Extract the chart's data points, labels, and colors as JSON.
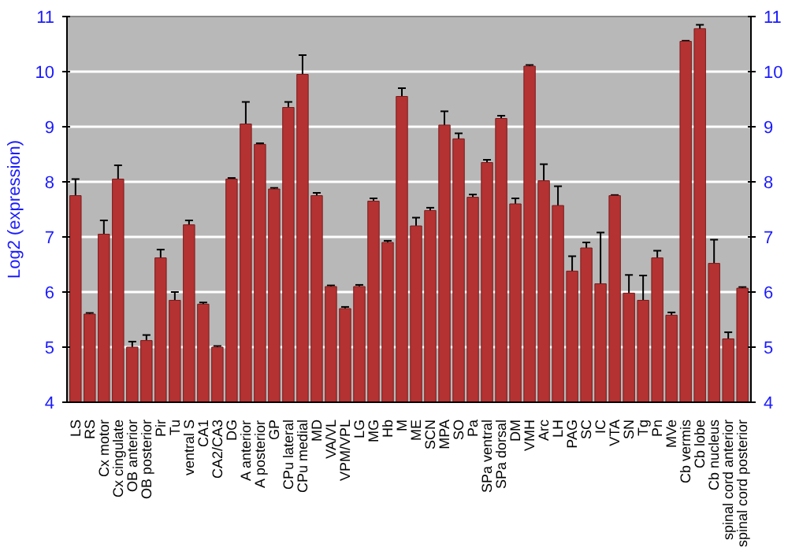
{
  "chart_data": {
    "type": "bar",
    "ylabel": "Log2 (expression)",
    "categories": [
      "LS",
      "RS",
      "Cx motor",
      "Cx cingulate",
      "OB anterior",
      "OB posterior",
      "Pir",
      "Tu",
      "ventral S",
      "CA1",
      "CA2/CA3",
      "DG",
      "A anterior",
      "A posterior",
      "GP",
      "CPu lateral",
      "CPu medial",
      "MD",
      "VA/VL",
      "VPM/VPL",
      "LG",
      "MG",
      "Hb",
      "M",
      "ME",
      "SCN",
      "MPA",
      "SO",
      "Pa",
      "SPa ventral",
      "SPa dorsal",
      "DM",
      "VMH",
      "Arc",
      "LH",
      "PAG",
      "SC",
      "IC",
      "VTA",
      "SN",
      "Tg",
      "Pn",
      "MVe",
      "Cb vermis",
      "Cb lobe",
      "Cb nucleus",
      "spinal cord anterior",
      "spinal cord posterior"
    ],
    "values": [
      7.75,
      5.6,
      7.05,
      8.05,
      5.0,
      5.12,
      6.62,
      5.85,
      7.22,
      5.78,
      5.0,
      8.05,
      9.05,
      8.68,
      7.87,
      9.35,
      9.95,
      7.75,
      6.1,
      5.7,
      6.1,
      7.65,
      6.9,
      9.55,
      7.2,
      7.48,
      9.03,
      8.78,
      7.72,
      8.35,
      9.15,
      7.6,
      10.1,
      8.02,
      7.57,
      6.38,
      6.8,
      6.15,
      7.75,
      5.98,
      5.85,
      6.62,
      5.58,
      10.55,
      10.78,
      6.52,
      5.15,
      6.07
    ],
    "errors": [
      0.3,
      0.02,
      0.25,
      0.25,
      0.1,
      0.1,
      0.15,
      0.15,
      0.08,
      0.03,
      0.02,
      0.02,
      0.4,
      0.02,
      0.02,
      0.1,
      0.35,
      0.05,
      0.02,
      0.03,
      0.03,
      0.05,
      0.03,
      0.15,
      0.15,
      0.05,
      0.25,
      0.1,
      0.05,
      0.05,
      0.05,
      0.1,
      0.02,
      0.3,
      0.35,
      0.27,
      0.1,
      0.93,
      0.01,
      0.33,
      0.45,
      0.13,
      0.05,
      0.01,
      0.07,
      0.43,
      0.12,
      0.02
    ],
    "color": "#b53232",
    "ylim": [
      4,
      11
    ],
    "yticks": [
      4,
      5,
      6,
      7,
      8,
      9,
      10,
      11
    ],
    "y2lim": [
      4,
      11
    ],
    "y2ticks": [
      4,
      5,
      6,
      7,
      8,
      9,
      10,
      11
    ],
    "grid": "y"
  }
}
